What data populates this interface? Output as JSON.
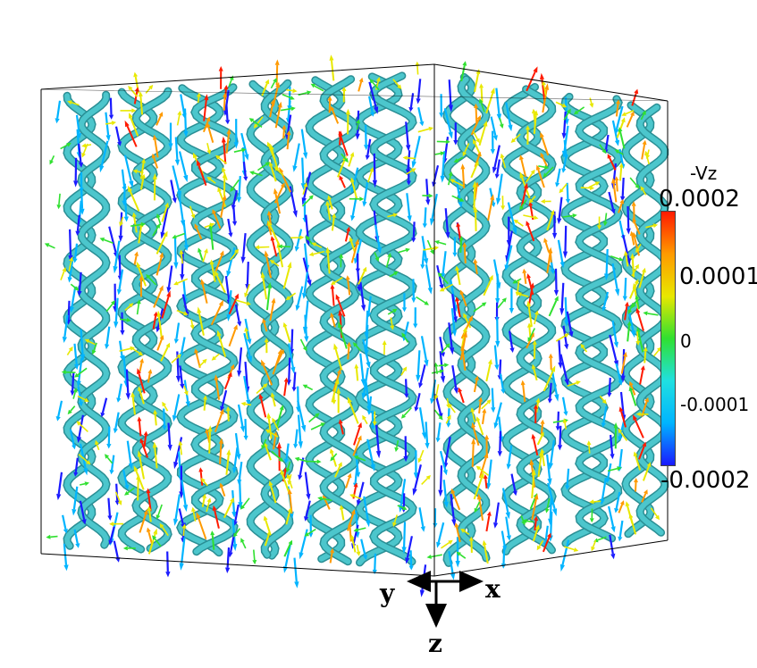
{
  "colorbar": {
    "title": "-Vz",
    "ticks": [
      {
        "label": "0.0002",
        "value": 0.0002,
        "size": "big"
      },
      {
        "label": "0.0001",
        "value": 0.0001,
        "size": "big"
      },
      {
        "label": "0",
        "value": 0,
        "size": "small"
      },
      {
        "label": "-0.0001",
        "value": -0.0001,
        "size": "small"
      },
      {
        "label": "-0.0002",
        "value": -0.0002,
        "size": "big"
      }
    ],
    "range": [
      -0.0002,
      0.0002
    ],
    "colormap": [
      "#1a1aff",
      "#00b4ff",
      "#20e0e0",
      "#30e030",
      "#e8e800",
      "#ff9a00",
      "#ff1a00"
    ]
  },
  "axes": {
    "x_label": "x",
    "y_label": "y",
    "z_label": "z"
  },
  "scene": {
    "vortex_color": "#4cc6cc",
    "background": "#ffffff"
  }
}
